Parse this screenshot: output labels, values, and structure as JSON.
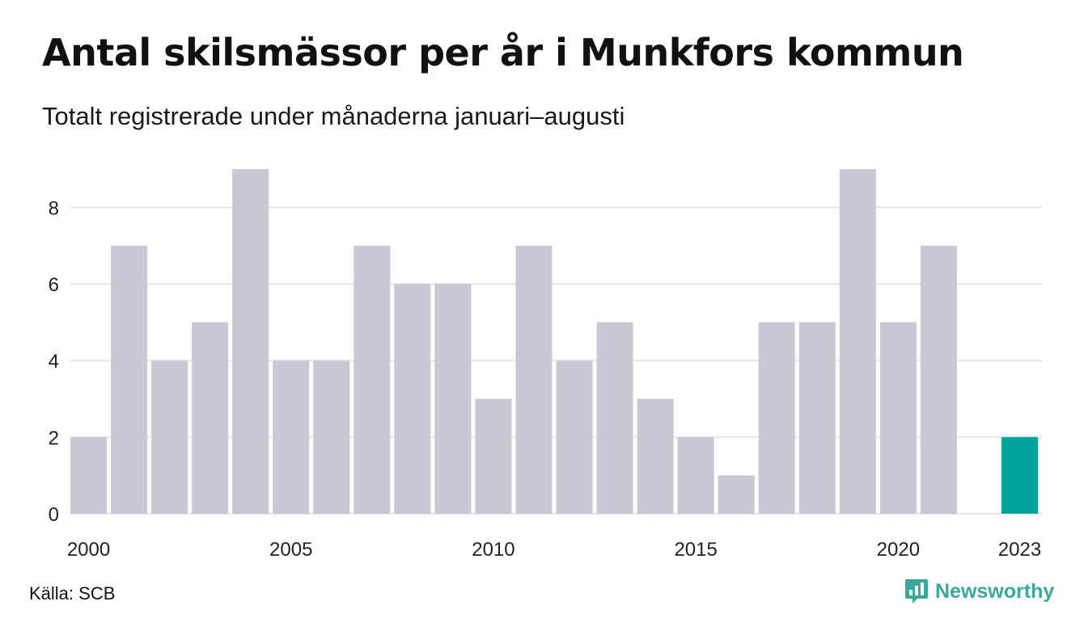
{
  "title": "Antal skilsmässor per år i Munkfors kommun",
  "subtitle": "Totalt registrerade under månaderna januari–augusti",
  "source": "Källa: SCB",
  "brand": {
    "name": "Newsworthy",
    "icon": "newsworthy-logo-icon",
    "color": "#3aa99a"
  },
  "colors": {
    "bar": "#c9c8d3",
    "highlight": "#00a39a",
    "grid": "#e6e6ea"
  },
  "chart_data": {
    "type": "bar",
    "title": "Antal skilsmässor per år i Munkfors kommun",
    "subtitle": "Totalt registrerade under månaderna januari–augusti",
    "categories": [
      "2000",
      "2001",
      "2002",
      "2003",
      "2004",
      "2005",
      "2006",
      "2007",
      "2008",
      "2009",
      "2010",
      "2011",
      "2012",
      "2013",
      "2014",
      "2015",
      "2016",
      "2017",
      "2018",
      "2019",
      "2020",
      "2021",
      "2022",
      "2023"
    ],
    "values": [
      2,
      7,
      4,
      5,
      9,
      4,
      4,
      7,
      6,
      6,
      3,
      7,
      4,
      5,
      3,
      2,
      1,
      5,
      5,
      9,
      5,
      7,
      null,
      2
    ],
    "highlight": "2023",
    "x_tick_labels": [
      "2000",
      "2005",
      "2010",
      "2015",
      "2020",
      "2023"
    ],
    "y_ticks": [
      0,
      2,
      4,
      6,
      8
    ],
    "ylim": [
      0,
      9
    ],
    "grid": true,
    "legend": "none"
  }
}
